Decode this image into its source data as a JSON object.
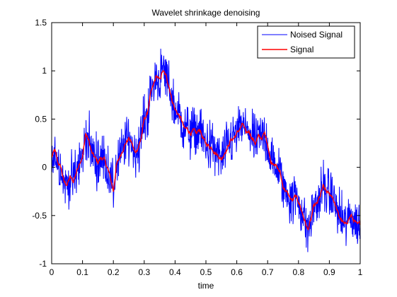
{
  "chart_data": {
    "type": "line",
    "title": "Wavelet shrinkage denoising",
    "xlabel": "time",
    "ylabel": "",
    "xlim": [
      0,
      1
    ],
    "ylim": [
      -1,
      1.5
    ],
    "xticks": [
      0,
      0.1,
      0.2,
      0.3,
      0.4,
      0.5,
      0.6,
      0.7,
      0.8,
      0.9,
      1
    ],
    "xtick_labels": [
      "0",
      "0.1",
      "0.2",
      "0.3",
      "0.4",
      "0.5",
      "0.6",
      "0.7",
      "0.8",
      "0.9",
      "1"
    ],
    "yticks": [
      -1,
      -0.5,
      0,
      0.5,
      1,
      1.5
    ],
    "ytick_labels": [
      "-1",
      "-0.5",
      "0",
      "0.5",
      "1",
      "1.5"
    ],
    "grid": false,
    "legend_position": "top-right",
    "noise_amplitude": 0.16,
    "series": [
      {
        "name": "Noised Signal",
        "color": "#0000ff",
        "derived_from": "Signal"
      },
      {
        "name": "Signal",
        "color": "#ff0000",
        "x": [
          0,
          0.01,
          0.02,
          0.03,
          0.04,
          0.05,
          0.06,
          0.07,
          0.08,
          0.09,
          0.1,
          0.11,
          0.12,
          0.13,
          0.14,
          0.15,
          0.16,
          0.17,
          0.18,
          0.19,
          0.2,
          0.21,
          0.22,
          0.23,
          0.24,
          0.25,
          0.26,
          0.27,
          0.28,
          0.29,
          0.3,
          0.31,
          0.32,
          0.33,
          0.34,
          0.35,
          0.36,
          0.37,
          0.38,
          0.39,
          0.4,
          0.41,
          0.42,
          0.43,
          0.44,
          0.45,
          0.46,
          0.47,
          0.48,
          0.49,
          0.5,
          0.51,
          0.52,
          0.53,
          0.54,
          0.55,
          0.56,
          0.57,
          0.58,
          0.59,
          0.6,
          0.61,
          0.62,
          0.63,
          0.64,
          0.65,
          0.66,
          0.67,
          0.68,
          0.69,
          0.7,
          0.71,
          0.72,
          0.73,
          0.74,
          0.75,
          0.76,
          0.77,
          0.78,
          0.79,
          0.8,
          0.81,
          0.82,
          0.83,
          0.84,
          0.85,
          0.86,
          0.87,
          0.88,
          0.89,
          0.9,
          0.91,
          0.92,
          0.93,
          0.94,
          0.95,
          0.96,
          0.97,
          0.98,
          0.99,
          1.0
        ],
        "values": [
          0.1,
          0.18,
          0.05,
          0.0,
          -0.15,
          -0.18,
          -0.1,
          -0.15,
          -0.05,
          0.05,
          0.1,
          0.35,
          0.28,
          0.15,
          0.1,
          0.05,
          0.1,
          0.08,
          0.0,
          -0.1,
          -0.25,
          0.02,
          0.1,
          0.18,
          0.25,
          0.3,
          0.25,
          0.15,
          0.2,
          0.3,
          0.5,
          0.55,
          0.75,
          0.85,
          0.95,
          0.9,
          1.0,
          0.95,
          0.85,
          0.7,
          0.6,
          0.55,
          0.5,
          0.4,
          0.4,
          0.35,
          0.38,
          0.35,
          0.4,
          0.3,
          0.25,
          0.22,
          0.2,
          0.15,
          0.12,
          0.08,
          0.15,
          0.2,
          0.28,
          0.3,
          0.35,
          0.4,
          0.45,
          0.35,
          0.38,
          0.3,
          0.25,
          0.32,
          0.3,
          0.35,
          0.25,
          0.05,
          0.05,
          0.0,
          -0.05,
          -0.2,
          -0.25,
          -0.3,
          -0.35,
          -0.3,
          -0.35,
          -0.45,
          -0.55,
          -0.65,
          -0.55,
          -0.4,
          -0.38,
          -0.3,
          -0.2,
          -0.25,
          -0.28,
          -0.3,
          -0.4,
          -0.5,
          -0.55,
          -0.6,
          -0.55,
          -0.5,
          -0.55,
          -0.6,
          -0.58
        ]
      }
    ]
  }
}
